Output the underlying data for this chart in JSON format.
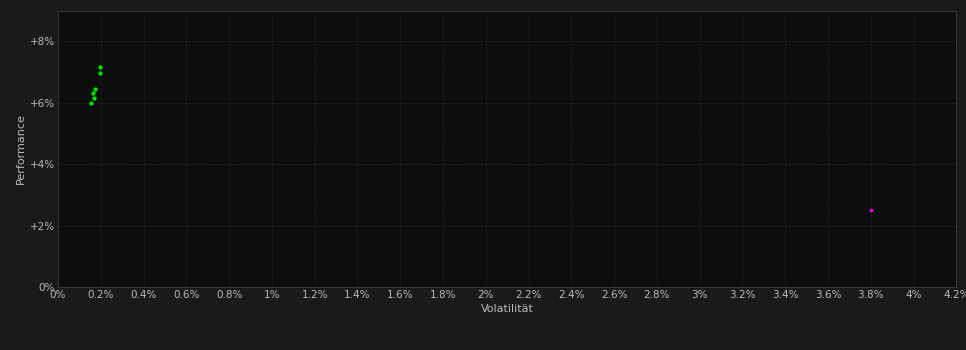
{
  "background_color": "#1a1a1a",
  "plot_bg_color": "#0d0d0d",
  "grid_color": "#303030",
  "grid_style": ":",
  "xlabel": "Volatilität",
  "ylabel": "Performance",
  "xlim": [
    0.0,
    0.042
  ],
  "ylim": [
    0.0,
    0.09
  ],
  "xticks": [
    0.0,
    0.002,
    0.004,
    0.006,
    0.008,
    0.01,
    0.012,
    0.014,
    0.016,
    0.018,
    0.02,
    0.022,
    0.024,
    0.026,
    0.028,
    0.03,
    0.032,
    0.034,
    0.036,
    0.038,
    0.04,
    0.042
  ],
  "xtick_labels": [
    "0%",
    "0.2%",
    "0.4%",
    "0.6%",
    "0.8%",
    "1%",
    "1.2%",
    "1.4%",
    "1.6%",
    "1.8%",
    "2%",
    "2.2%",
    "2.4%",
    "2.6%",
    "2.8%",
    "3%",
    "3.2%",
    "3.4%",
    "3.6%",
    "3.8%",
    "4%",
    "4.2%"
  ],
  "yticks": [
    0.0,
    0.02,
    0.04,
    0.06,
    0.08
  ],
  "ytick_labels": [
    "0%",
    "+2%",
    "+4%",
    "+6%",
    "+8%"
  ],
  "green_points": [
    [
      0.00195,
      0.0715
    ],
    [
      0.00195,
      0.0695
    ],
    [
      0.00175,
      0.0645
    ],
    [
      0.00165,
      0.063
    ],
    [
      0.0017,
      0.0615
    ],
    [
      0.00155,
      0.06
    ]
  ],
  "magenta_points": [
    [
      0.038,
      0.025
    ]
  ],
  "green_color": "#00dd00",
  "magenta_color": "#dd00dd",
  "green_size": 10,
  "magenta_size": 8,
  "tick_color": "#bbbbbb",
  "tick_fontsize": 7.5,
  "label_fontsize": 8,
  "label_color": "#bbbbbb"
}
